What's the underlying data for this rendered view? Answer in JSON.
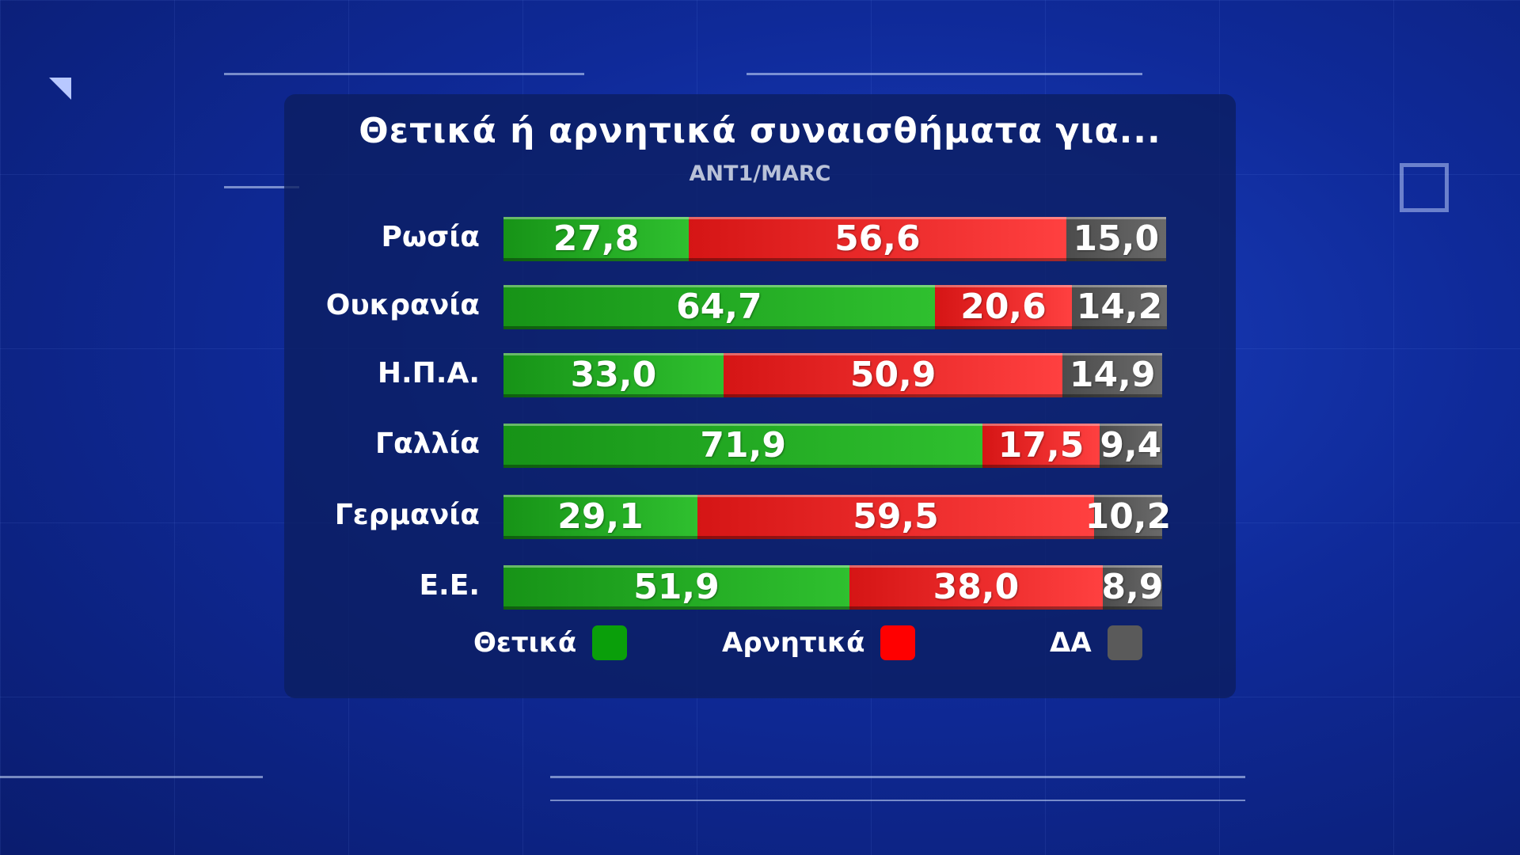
{
  "chart_data": {
    "type": "bar",
    "stacked": true,
    "orientation": "horizontal",
    "title": "Θετικά ή αρνητικά συναισθήματα για...",
    "subtitle": "ANT1/MARC",
    "categories": [
      "Ρωσία",
      "Ουκρανία",
      "Η.Π.Α.",
      "Γαλλία",
      "Γερμανία",
      "Ε.Ε."
    ],
    "series": [
      {
        "name": "Θετικά",
        "color": "#1fa81f",
        "values": [
          27.8,
          64.7,
          33.0,
          71.9,
          29.1,
          51.9
        ],
        "labels": [
          "27,8",
          "64,7",
          "33,0",
          "71,9",
          "29,1",
          "51,9"
        ]
      },
      {
        "name": "Αρνητικά",
        "color": "#e82222",
        "values": [
          56.6,
          20.6,
          50.9,
          17.5,
          59.5,
          38.0
        ],
        "labels": [
          "56,6",
          "20,6",
          "50,9",
          "17,5",
          "59,5",
          "38,0"
        ]
      },
      {
        "name": "ΔΑ",
        "color": "#5a5a5a",
        "values": [
          15.0,
          14.2,
          14.9,
          9.4,
          10.2,
          8.9
        ],
        "labels": [
          "15,0",
          "14,2",
          "14,9",
          "9,4",
          "10,2",
          "8,9"
        ]
      }
    ],
    "legend": "bottom",
    "grid": false
  }
}
